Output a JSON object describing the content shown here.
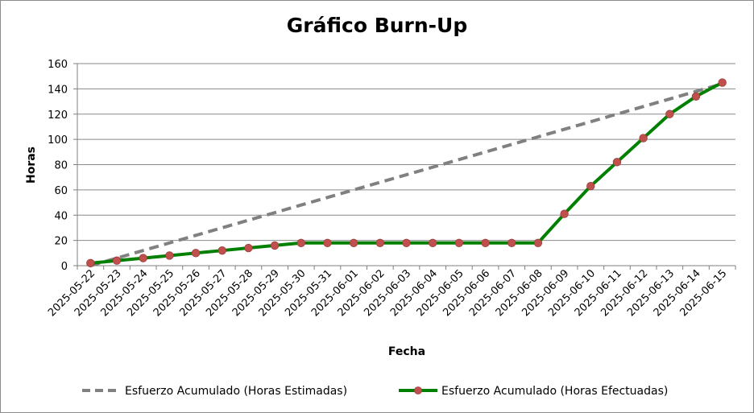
{
  "chart_data": {
    "type": "line",
    "title": "Gráfico Burn-Up",
    "xlabel": "Fecha",
    "ylabel": "Horas",
    "ylim": [
      0,
      160
    ],
    "yticks": [
      0,
      20,
      40,
      60,
      80,
      100,
      120,
      140,
      160
    ],
    "grid": true,
    "legend_position": "bottom",
    "categories": [
      "2025-05-22",
      "2025-05-23",
      "2025-05-24",
      "2025-05-25",
      "2025-05-26",
      "2025-05-27",
      "2025-05-28",
      "2025-05-29",
      "2025-05-30",
      "2025-05-31",
      "2025-06-01",
      "2025-06-02",
      "2025-06-03",
      "2025-06-04",
      "2025-06-05",
      "2025-06-06",
      "2025-06-07",
      "2025-06-08",
      "2025-06-09",
      "2025-06-10",
      "2025-06-11",
      "2025-06-12",
      "2025-06-13",
      "2025-06-14",
      "2025-06-15"
    ],
    "series": [
      {
        "name": "Esfuerzo Acumulado (Horas Estimadas)",
        "style": "dashed",
        "color": "#808080",
        "values": [
          0,
          6,
          12,
          18,
          24,
          30,
          36,
          42,
          48,
          54,
          60,
          66,
          72,
          78,
          84,
          90,
          96,
          102,
          108,
          114,
          120,
          126,
          132,
          138,
          144
        ]
      },
      {
        "name": "Esfuerzo Acumulado (Horas Efectuadas)",
        "style": "solid-markers",
        "color": "#008000",
        "marker_color": "#c0504d",
        "values": [
          2,
          4,
          6,
          8,
          10,
          12,
          14,
          16,
          18,
          18,
          18,
          18,
          18,
          18,
          18,
          18,
          18,
          18,
          41,
          63,
          82,
          101,
          120,
          134,
          145
        ]
      }
    ]
  }
}
